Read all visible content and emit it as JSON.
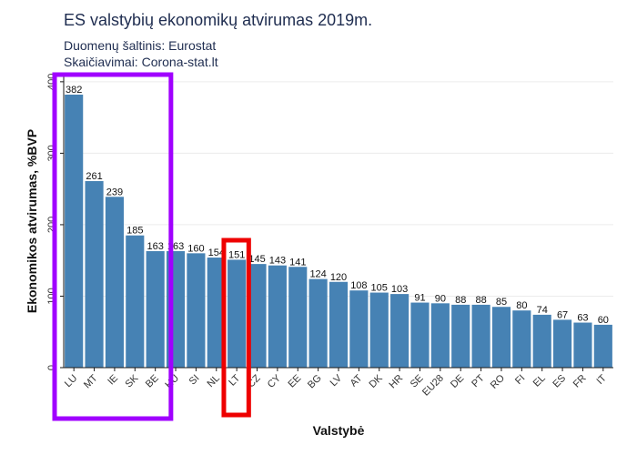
{
  "title": "ES valstybių ekonomikų atvirumas 2019m.",
  "source": "Duomenų šaltinis: Eurostat",
  "calc": "Skaičiavimai: Corona-stat.lt",
  "colors": {
    "bar": "#4682b4",
    "highlight_group": "#a000ff",
    "highlight_lt": "#ee0000"
  },
  "chart_data": {
    "type": "bar",
    "title": "ES valstybių ekonomikų atvirumas 2019m.",
    "xlabel": "Valstybė",
    "ylabel": "Ekonomikos atvirumas, %BVP",
    "ylim": [
      0,
      410
    ],
    "yticks": [
      0,
      100,
      200,
      300,
      400
    ],
    "grid": true,
    "categories": [
      "LU",
      "MT",
      "IE",
      "SK",
      "BE",
      "HU",
      "SI",
      "NL",
      "LT",
      "CZ",
      "CY",
      "EE",
      "BG",
      "LV",
      "AT",
      "DK",
      "HR",
      "SE",
      "EU28",
      "DE",
      "PT",
      "RO",
      "FI",
      "EL",
      "ES",
      "FR",
      "IT"
    ],
    "values": [
      382,
      261,
      239,
      185,
      163,
      163,
      160,
      154,
      151,
      145,
      143,
      141,
      124,
      120,
      108,
      105,
      103,
      91,
      90,
      88,
      88,
      85,
      80,
      74,
      67,
      63,
      60
    ],
    "value_labels": [
      "382",
      "261",
      "239",
      "185",
      "163",
      "163",
      "160",
      "154",
      "151",
      "145",
      "143",
      "141",
      "124",
      "120",
      "108",
      "105",
      "103",
      "91",
      "90",
      "88",
      "88",
      "85",
      "80",
      "74",
      "67",
      "63",
      "60"
    ],
    "highlights": [
      {
        "categories": [
          "LU",
          "MT",
          "IE",
          "SK",
          "BE"
        ],
        "color": "#a000ff"
      },
      {
        "categories": [
          "LT"
        ],
        "color": "#ee0000"
      }
    ]
  }
}
